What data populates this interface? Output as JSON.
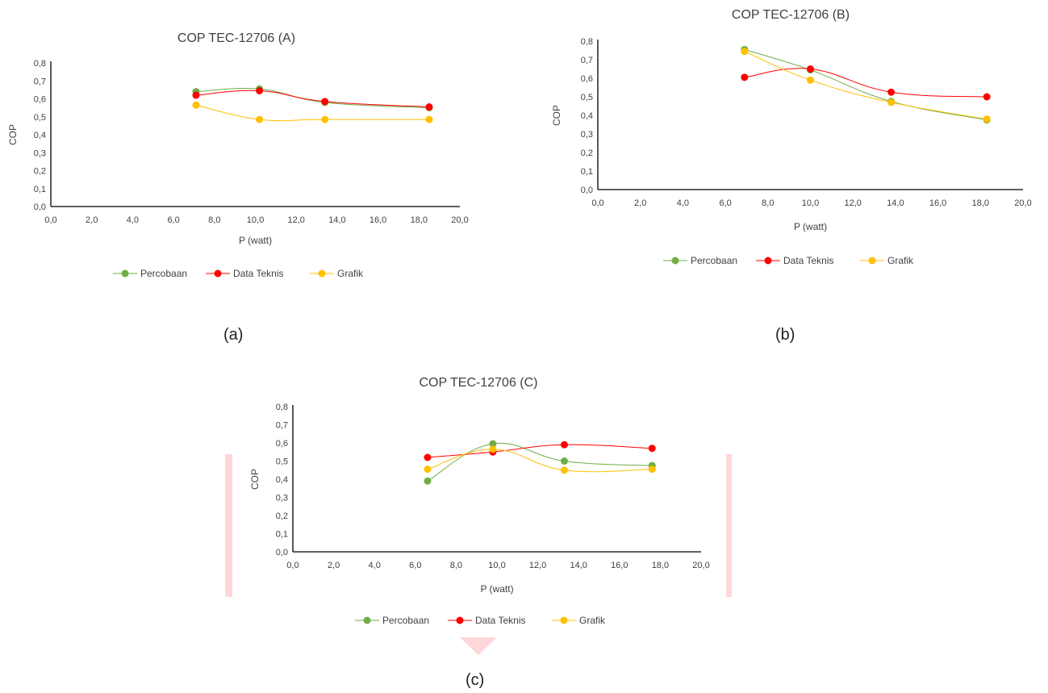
{
  "captions": [
    "(a)",
    "(b)",
    "(c)"
  ],
  "colors": {
    "Percobaan": "#70ad47",
    "Data Teknis": "#ff0000",
    "Grafik": "#ffc000"
  },
  "chart_data": [
    {
      "type": "line",
      "title": "COP TEC-12706 (A)",
      "xlabel": "P (watt)",
      "ylabel": "COP",
      "xlim": [
        0,
        20
      ],
      "ylim": [
        0,
        0.8
      ],
      "x_ticks": [
        "0,0",
        "2,0",
        "4,0",
        "6,0",
        "8,0",
        "10,0",
        "12,0",
        "14,0",
        "16,0",
        "18,0",
        "20,0"
      ],
      "y_ticks": [
        "0,0",
        "0,1",
        "0,2",
        "0,3",
        "0,4",
        "0,5",
        "0,6",
        "0,7",
        "0,8"
      ],
      "legend": "bottom",
      "series": [
        {
          "name": "Percobaan",
          "x": [
            7.1,
            10.2,
            13.4,
            18.5
          ],
          "y": [
            0.64,
            0.655,
            0.58,
            0.55
          ]
        },
        {
          "name": "Data Teknis",
          "x": [
            7.1,
            10.2,
            13.4,
            18.5
          ],
          "y": [
            0.62,
            0.645,
            0.585,
            0.555
          ]
        },
        {
          "name": "Grafik",
          "x": [
            7.1,
            10.2,
            13.4,
            18.5
          ],
          "y": [
            0.565,
            0.485,
            0.485,
            0.485
          ]
        }
      ]
    },
    {
      "type": "line",
      "title": "COP TEC-12706 (B)",
      "xlabel": "P (watt)",
      "ylabel": "COP",
      "xlim": [
        0,
        20
      ],
      "ylim": [
        0,
        0.8
      ],
      "x_ticks": [
        "0,0",
        "2,0",
        "4,0",
        "6,0",
        "8,0",
        "10,0",
        "12,0",
        "14,0",
        "16,0",
        "18,0",
        "20,0"
      ],
      "y_ticks": [
        "0,0",
        "0,1",
        "0,2",
        "0,3",
        "0,4",
        "0,5",
        "0,6",
        "0,7",
        "0,8"
      ],
      "legend": "bottom",
      "series": [
        {
          "name": "Percobaan",
          "x": [
            6.9,
            10.0,
            13.8,
            18.3
          ],
          "y": [
            0.755,
            0.645,
            0.475,
            0.375
          ]
        },
        {
          "name": "Data Teknis",
          "x": [
            6.9,
            10.0,
            13.8,
            18.3
          ],
          "y": [
            0.605,
            0.65,
            0.525,
            0.5
          ]
        },
        {
          "name": "Grafik",
          "x": [
            6.9,
            10.0,
            13.8,
            18.3
          ],
          "y": [
            0.745,
            0.59,
            0.47,
            0.38
          ]
        }
      ]
    },
    {
      "type": "line",
      "title": "COP TEC-12706 (C)",
      "xlabel": "P (watt)",
      "ylabel": "COP",
      "xlim": [
        0,
        20
      ],
      "ylim": [
        0,
        0.8
      ],
      "x_ticks": [
        "0,0",
        "2,0",
        "4,0",
        "6,0",
        "8,0",
        "10,0",
        "12,0",
        "14,0",
        "16,0",
        "18,0",
        "20,0"
      ],
      "y_ticks": [
        "0,0",
        "0,1",
        "0,2",
        "0,3",
        "0,4",
        "0,5",
        "0,6",
        "0,7",
        "0,8"
      ],
      "legend": "bottom",
      "series": [
        {
          "name": "Percobaan",
          "x": [
            6.6,
            9.8,
            13.3,
            17.6
          ],
          "y": [
            0.39,
            0.595,
            0.5,
            0.475
          ]
        },
        {
          "name": "Data Teknis",
          "x": [
            6.6,
            9.8,
            13.3,
            17.6
          ],
          "y": [
            0.52,
            0.55,
            0.59,
            0.57
          ]
        },
        {
          "name": "Grafik",
          "x": [
            6.6,
            9.8,
            13.3,
            17.6
          ],
          "y": [
            0.455,
            0.565,
            0.45,
            0.455
          ]
        }
      ]
    }
  ]
}
